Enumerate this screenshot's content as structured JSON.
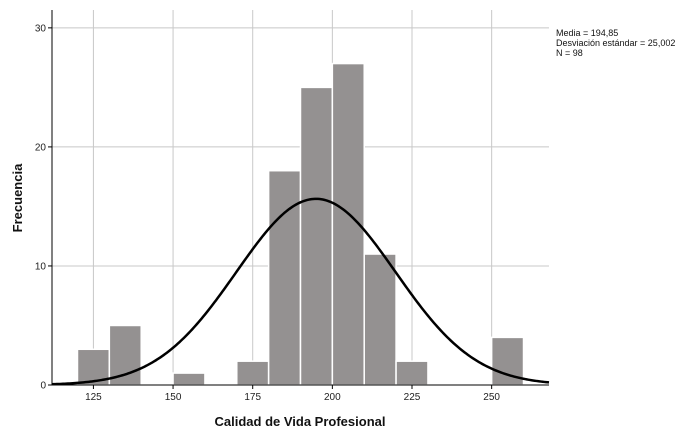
{
  "chart_data": {
    "type": "bar",
    "title": "",
    "xlabel": "Calidad de Vida Profesional",
    "ylabel": "Frecuencia",
    "xlim": [
      112,
      268
    ],
    "ylim": [
      0,
      31.5
    ],
    "x_ticks": [
      125,
      150,
      175,
      200,
      225,
      250
    ],
    "y_ticks": [
      0,
      10,
      20,
      30
    ],
    "grid": true,
    "bin_width": 10,
    "bins": [
      {
        "start": 120,
        "end": 130,
        "count": 3
      },
      {
        "start": 130,
        "end": 140,
        "count": 5
      },
      {
        "start": 140,
        "end": 150,
        "count": 0
      },
      {
        "start": 150,
        "end": 160,
        "count": 1
      },
      {
        "start": 160,
        "end": 170,
        "count": 0
      },
      {
        "start": 170,
        "end": 180,
        "count": 2
      },
      {
        "start": 180,
        "end": 190,
        "count": 18
      },
      {
        "start": 190,
        "end": 200,
        "count": 25
      },
      {
        "start": 200,
        "end": 210,
        "count": 27
      },
      {
        "start": 210,
        "end": 220,
        "count": 11
      },
      {
        "start": 220,
        "end": 230,
        "count": 2
      },
      {
        "start": 230,
        "end": 240,
        "count": 0
      },
      {
        "start": 240,
        "end": 250,
        "count": 0
      },
      {
        "start": 250,
        "end": 260,
        "count": 4
      }
    ],
    "normal_curve": {
      "mean": 194.85,
      "sd": 25.002,
      "n": 98
    },
    "legend_position": "top-right",
    "colors": {
      "bar_fill": "#949191",
      "bar_stroke": "#ffffff",
      "curve": "#000000",
      "grid": "#c8c8c8"
    }
  },
  "stats": {
    "mean_text": "Media = 194,85",
    "sd_text": "Desviación estándar = 25,002",
    "n_text": "N = 98"
  }
}
